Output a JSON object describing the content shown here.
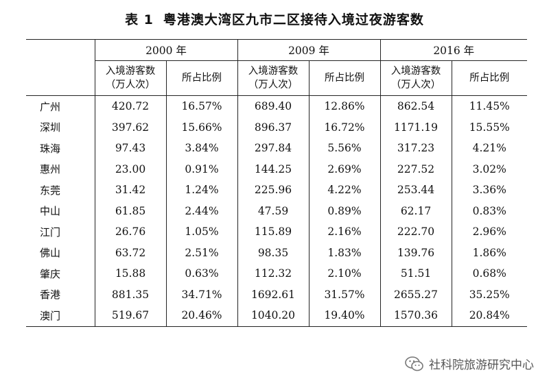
{
  "title": {
    "number": "表 1",
    "text": "粤港澳大湾区九市二区接待入境过夜游客数"
  },
  "table": {
    "years": [
      "2000 年",
      "2009 年",
      "2016 年"
    ],
    "subheaders": {
      "tourists_line1": "入境游客数",
      "tourists_line2": "（万人次）",
      "share": "所占比例"
    },
    "rows": [
      {
        "region": "广州",
        "v2000": "420.72",
        "p2000": "16.57%",
        "v2009": "689.40",
        "p2009": "12.86%",
        "v2016": "862.54",
        "p2016": "11.45%"
      },
      {
        "region": "深圳",
        "v2000": "397.62",
        "p2000": "15.66%",
        "v2009": "896.37",
        "p2009": "16.72%",
        "v2016": "1171.19",
        "p2016": "15.55%"
      },
      {
        "region": "珠海",
        "v2000": "97.43",
        "p2000": "3.84%",
        "v2009": "297.84",
        "p2009": "5.56%",
        "v2016": "317.23",
        "p2016": "4.21%"
      },
      {
        "region": "惠州",
        "v2000": "23.00",
        "p2000": "0.91%",
        "v2009": "144.25",
        "p2009": "2.69%",
        "v2016": "227.52",
        "p2016": "3.02%"
      },
      {
        "region": "东莞",
        "v2000": "31.42",
        "p2000": "1.24%",
        "v2009": "225.96",
        "p2009": "4.22%",
        "v2016": "253.44",
        "p2016": "3.36%"
      },
      {
        "region": "中山",
        "v2000": "61.85",
        "p2000": "2.44%",
        "v2009": "47.59",
        "p2009": "0.89%",
        "v2016": "62.17",
        "p2016": "0.83%"
      },
      {
        "region": "江门",
        "v2000": "26.76",
        "p2000": "1.05%",
        "v2009": "115.89",
        "p2009": "2.16%",
        "v2016": "222.70",
        "p2016": "2.96%"
      },
      {
        "region": "佛山",
        "v2000": "63.72",
        "p2000": "2.51%",
        "v2009": "98.35",
        "p2009": "1.83%",
        "v2016": "139.76",
        "p2016": "1.86%"
      },
      {
        "region": "肇庆",
        "v2000": "15.88",
        "p2000": "0.63%",
        "v2009": "112.32",
        "p2009": "2.10%",
        "v2016": "51.51",
        "p2016": "0.68%"
      },
      {
        "region": "香港",
        "v2000": "881.35",
        "p2000": "34.71%",
        "v2009": "1692.61",
        "p2009": "31.57%",
        "v2016": "2655.27",
        "p2016": "35.25%"
      },
      {
        "region": "澳门",
        "v2000": "519.67",
        "p2000": "20.46%",
        "v2009": "1040.20",
        "p2009": "19.40%",
        "v2016": "1570.36",
        "p2016": "20.84%"
      }
    ]
  },
  "watermark": {
    "icon": "wechat-icon",
    "text": "社科院旅游研究中心"
  }
}
